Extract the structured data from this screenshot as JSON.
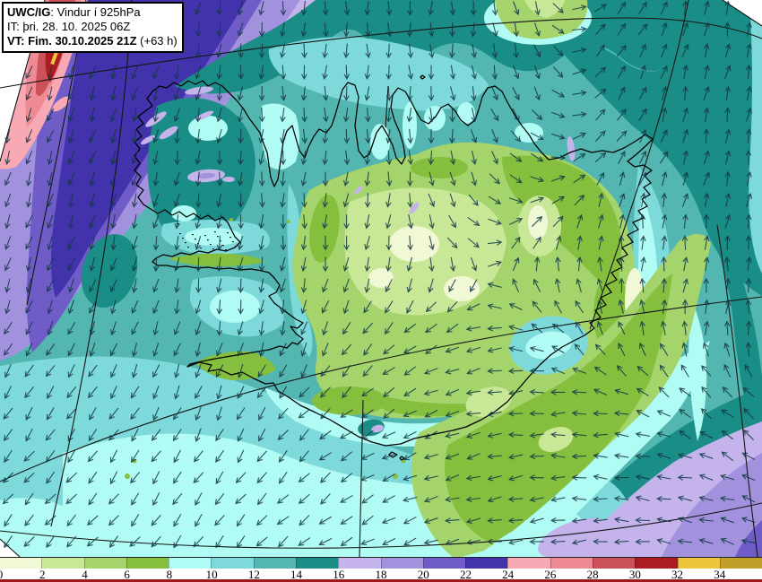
{
  "header": {
    "product_bold": "UWC/IG",
    "product_rest": ": Vindur í 925hPa",
    "init_line": "IT: þri. 28. 10. 2025 06Z",
    "valid_bold": "VT: Fim. 30.10.2025 21Z",
    "valid_rest": " (+63 h)"
  },
  "legend": {
    "ticks": [
      "0",
      "2",
      "4",
      "6",
      "8",
      "10",
      "12",
      "14",
      "16",
      "18",
      "20",
      "22",
      "24",
      "26",
      "28",
      "30",
      "32",
      "34"
    ],
    "segment_colors": [
      "#f1f8d6",
      "#c9e897",
      "#a5d36c",
      "#86bf3e",
      "#b0fbf3",
      "#7edada",
      "#53b6b1",
      "#1a8d86",
      "#c5b4ec",
      "#a292de",
      "#6f5cc6",
      "#4232ac",
      "#f9a9b4",
      "#ee8a93",
      "#cb5259",
      "#ad1b22",
      "#edc63e",
      "#c29e2b"
    ],
    "bottom_bar_color": "#9e1a1a"
  },
  "palette": {
    "w0": "#f1f8d6",
    "w2": "#c9e897",
    "w4": "#a5d36c",
    "w6": "#86bf3e",
    "w8": "#b0fbf3",
    "w10": "#7edada",
    "w12": "#53b6b1",
    "w14": "#1a8d86",
    "w16": "#c5b4ec",
    "w18": "#a292de",
    "w20": "#6f5cc6",
    "w22": "#4232ac",
    "w24": "#f9a9b4",
    "w26": "#ee8a93",
    "w28": "#cb5259",
    "w30": "#ad1b22",
    "w32": "#edc63e",
    "w34": "#c29e2b",
    "white": "#ffffff"
  },
  "map": {
    "base_fill": "#53b6b1",
    "coast_color": "#000000",
    "graticule_color": "#141414",
    "arrow_color": "#123744"
  },
  "chart_data": {
    "type": "wind-map",
    "variable": "Vindur í 925hPa",
    "level_hpa": 925,
    "speed_bins_ms": [
      0,
      2,
      4,
      6,
      8,
      10,
      12,
      14,
      16,
      18,
      20,
      22,
      24,
      26,
      28,
      30,
      32,
      34,
      36
    ],
    "arrow_grid": {
      "x": [
        0,
        85,
        170,
        255,
        340,
        425,
        510,
        595,
        680,
        765,
        850
      ],
      "y": [
        0,
        90,
        180,
        270,
        360,
        450,
        540,
        630
      ],
      "dir_deg": [
        [
          203,
          201,
          197,
          189,
          182,
          180,
          178,
          168,
          40,
          14,
          8
        ],
        [
          201,
          200,
          196,
          188,
          181,
          180,
          176,
          158,
          38,
          13,
          8
        ],
        [
          198,
          199,
          194,
          186,
          182,
          184,
          172,
          120,
          35,
          16,
          9
        ],
        [
          197,
          200,
          192,
          186,
          184,
          190,
          140,
          30,
          358,
          8,
          5
        ],
        [
          204,
          205,
          196,
          190,
          196,
          215,
          245,
          300,
          345,
          3,
          1
        ],
        [
          214,
          214,
          208,
          204,
          222,
          238,
          252,
          265,
          280,
          305,
          318
        ],
        [
          219,
          220,
          214,
          214,
          228,
          242,
          256,
          265,
          272,
          282,
          295
        ],
        [
          223,
          224,
          219,
          220,
          232,
          246,
          256,
          262,
          268,
          278,
          290
        ]
      ]
    }
  }
}
